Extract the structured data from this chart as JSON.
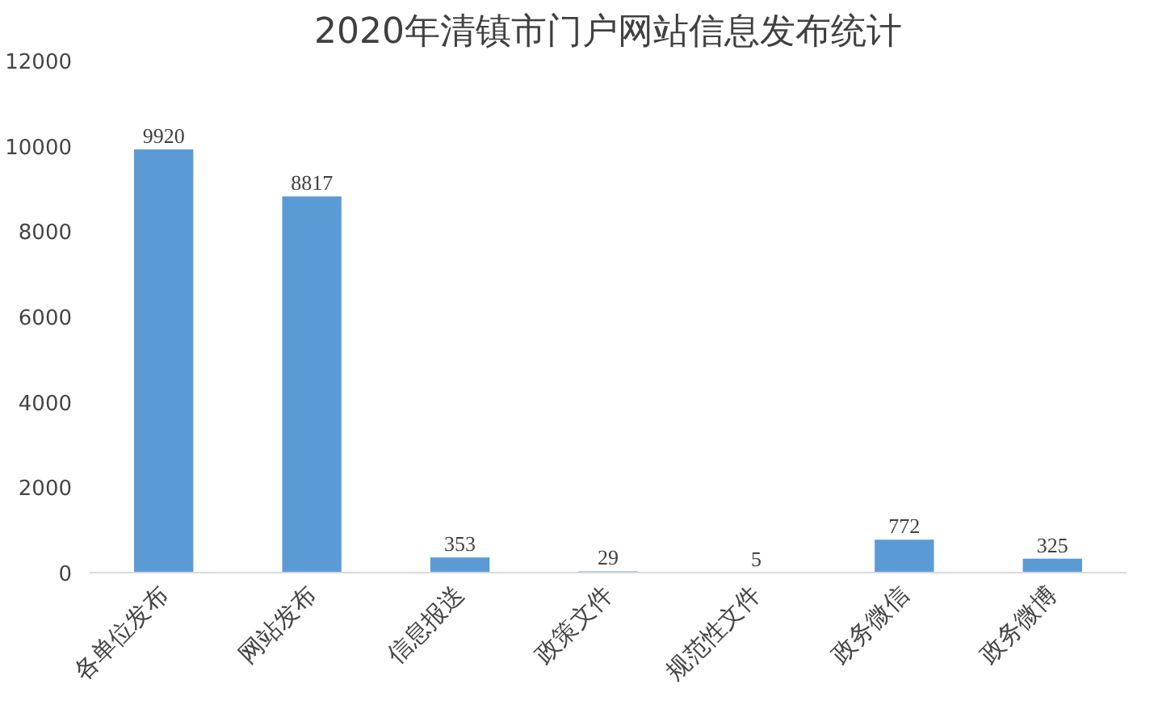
{
  "chart_data": {
    "type": "bar",
    "title": "2020年清镇市门户网站信息发布统计",
    "categories": [
      "各单位发布",
      "网站发布",
      "信息报送",
      "政策文件",
      "规范性文件",
      "政务微信",
      "政务微博"
    ],
    "values": [
      9920,
      8817,
      353,
      29,
      5,
      772,
      325
    ],
    "color": "#5b9bd5",
    "ylim": [
      0,
      12000
    ],
    "yticks": [
      0,
      2000,
      4000,
      6000,
      8000,
      10000,
      12000
    ],
    "grid": false,
    "data_labels": true
  }
}
